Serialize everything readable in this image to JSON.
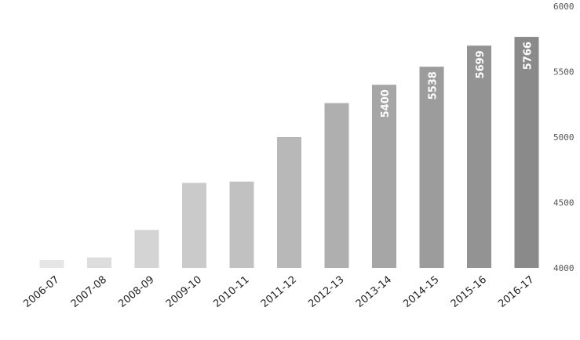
{
  "chart_data": {
    "type": "bar",
    "categories": [
      "2006-07",
      "2007-08",
      "2008-09",
      "2009-10",
      "2010-11",
      "2011-12",
      "2012-13",
      "2013-14",
      "2014-15",
      "2015-16",
      "2016-17"
    ],
    "values": [
      4060,
      4080,
      4290,
      4650,
      4660,
      5000,
      5260,
      5400,
      5538,
      5699,
      5766
    ],
    "data_labels": [
      "",
      "",
      "",
      "",
      "",
      "",
      "",
      "5400",
      "5538",
      "5699",
      "5766"
    ],
    "ylim": [
      4000,
      6000
    ],
    "yticks": [
      4000,
      4500,
      5000,
      5500,
      6000
    ],
    "ytick_labels": [
      "4000",
      "4500",
      "5000",
      "5500",
      "6000"
    ],
    "y_axis_position": "right",
    "grid": false,
    "bar_color_light": "#e6e6e6",
    "bar_color_dark": "#8a8a8a"
  }
}
